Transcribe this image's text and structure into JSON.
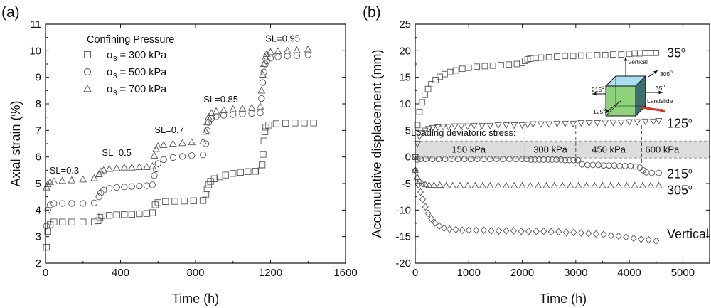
{
  "panels": [
    {
      "label": "(a)",
      "type": "scatter",
      "xlabel": "Time (h)",
      "ylabel": "Axial strain (%)",
      "xlim": [
        0,
        1600
      ],
      "ylim": [
        2,
        11
      ],
      "xticks": [
        "0",
        "400",
        "800",
        "1200",
        "1600"
      ],
      "yticks": [
        "2",
        "3",
        "4",
        "5",
        "6",
        "7",
        "8",
        "9",
        "10",
        "11"
      ],
      "legend": {
        "title": "Confining Pressure",
        "placement": "top-left",
        "entries": [
          {
            "symbol": "square",
            "label": " = 300 kPa"
          },
          {
            "symbol": "circle",
            "label": " = 500 kPa"
          },
          {
            "symbol": "triangle",
            "label": " = 700 kPa"
          }
        ],
        "symbol_prefix": "σ",
        "symbol_subscript": "3"
      },
      "annotations": [
        {
          "text": "SL=0.3",
          "x": 100,
          "y": 5.38
        },
        {
          "text": "SL=0.5",
          "x": 380,
          "y": 6.05
        },
        {
          "text": "SL=0.7",
          "x": 660,
          "y": 6.9
        },
        {
          "text": "SL=0.85",
          "x": 935,
          "y": 8.05
        },
        {
          "text": "SL=0.95",
          "x": 1265,
          "y": 10.35
        }
      ],
      "series": [
        {
          "name": "σ3 = 300 kPa",
          "marker": "square",
          "x": [
            5,
            12,
            25,
            45,
            90,
            140,
            200,
            260,
            280,
            290,
            300,
            340,
            380,
            420,
            460,
            500,
            540,
            570,
            585,
            600,
            640,
            690,
            740,
            790,
            840,
            855,
            862,
            870,
            880,
            900,
            930,
            960,
            1000,
            1040,
            1080,
            1120,
            1150,
            1155,
            1160,
            1165,
            1170,
            1175,
            1190,
            1230,
            1280,
            1330,
            1380,
            1430
          ],
          "y": [
            2.6,
            3.2,
            3.45,
            3.55,
            3.55,
            3.55,
            3.55,
            3.55,
            3.6,
            3.72,
            3.78,
            3.8,
            3.82,
            3.83,
            3.84,
            3.86,
            3.87,
            3.9,
            4.2,
            4.28,
            4.32,
            4.33,
            4.34,
            4.35,
            4.36,
            4.6,
            4.8,
            4.95,
            5.08,
            5.18,
            5.25,
            5.32,
            5.38,
            5.42,
            5.45,
            5.46,
            5.48,
            5.7,
            6.1,
            6.6,
            6.95,
            7.12,
            7.2,
            7.25,
            7.27,
            7.28,
            7.28,
            7.28
          ]
        },
        {
          "name": "σ3 = 500 kPa",
          "marker": "circle",
          "x": [
            5,
            12,
            25,
            45,
            90,
            140,
            200,
            260,
            285,
            295,
            310,
            340,
            380,
            420,
            460,
            500,
            540,
            570,
            580,
            590,
            600,
            630,
            680,
            730,
            780,
            840,
            855,
            862,
            870,
            885,
            910,
            950,
            1000,
            1050,
            1100,
            1145,
            1152,
            1158,
            1165,
            1172,
            1180,
            1200,
            1240,
            1290,
            1340,
            1400
          ],
          "y": [
            3.4,
            4.0,
            4.2,
            4.25,
            4.25,
            4.25,
            4.25,
            4.27,
            4.5,
            4.65,
            4.75,
            4.82,
            4.85,
            4.87,
            4.89,
            4.9,
            4.92,
            4.95,
            5.3,
            5.55,
            5.75,
            5.9,
            5.98,
            6.02,
            6.05,
            6.08,
            6.5,
            7.0,
            7.3,
            7.45,
            7.52,
            7.57,
            7.6,
            7.62,
            7.64,
            7.66,
            8.2,
            8.8,
            9.2,
            9.5,
            9.62,
            9.72,
            9.77,
            9.8,
            9.82,
            9.85
          ]
        },
        {
          "name": "σ3 = 700 kPa",
          "marker": "triangle",
          "x": [
            5,
            12,
            25,
            45,
            90,
            140,
            200,
            260,
            285,
            295,
            310,
            340,
            380,
            420,
            460,
            500,
            540,
            570,
            580,
            590,
            600,
            630,
            680,
            730,
            780,
            840,
            855,
            862,
            870,
            885,
            910,
            950,
            1000,
            1050,
            1100,
            1145,
            1152,
            1158,
            1165,
            1172,
            1180,
            1200,
            1240,
            1290,
            1340,
            1400
          ],
          "y": [
            4.85,
            4.97,
            5.05,
            5.08,
            5.1,
            5.12,
            5.15,
            5.2,
            5.35,
            5.45,
            5.5,
            5.55,
            5.58,
            5.6,
            5.6,
            5.62,
            5.62,
            5.65,
            6.05,
            6.3,
            6.4,
            6.45,
            6.5,
            6.52,
            6.55,
            6.58,
            6.95,
            7.3,
            7.5,
            7.65,
            7.72,
            7.76,
            7.8,
            7.82,
            7.85,
            7.9,
            8.5,
            9.1,
            9.5,
            9.75,
            9.88,
            9.95,
            9.98,
            10.0,
            10.02,
            10.05
          ]
        }
      ]
    },
    {
      "label": "(b)",
      "type": "scatter",
      "xlabel": "Time (h)",
      "ylabel": "Accumulative displacement (mm)",
      "xlim": [
        0,
        5500
      ],
      "ylim": [
        -20,
        25
      ],
      "xticks": [
        "0",
        "1000",
        "2000",
        "3000",
        "4000",
        "5000"
      ],
      "yticks": [
        "-20",
        "-15",
        "-10",
        "-5",
        "0",
        "5",
        "10",
        "15",
        "20",
        "25"
      ],
      "band": {
        "y_from": -0.2,
        "y_to": 3.0,
        "title": "Loading deviatoric  stress:",
        "stages": [
          {
            "label": "150 kPa",
            "x_from": 0,
            "x_to": 2050
          },
          {
            "label": "300 kPa",
            "x_from": 2050,
            "x_to": 3000
          },
          {
            "label": "450 kPa",
            "x_from": 3000,
            "x_to": 4230
          },
          {
            "label": "600 kPa",
            "x_from": 4230,
            "x_to": 5500
          }
        ]
      },
      "series_labels": [
        {
          "text": "35",
          "sup": "o",
          "y": 19.6
        },
        {
          "text": "125",
          "sup": "o",
          "y": 6.3
        },
        {
          "text": "215",
          "sup": "o",
          "y": -3.2
        },
        {
          "text": "305",
          "sup": "o",
          "y": -6.3
        },
        {
          "text": "Vertical",
          "sup": "",
          "y": -14.5
        }
      ],
      "inset": {
        "vertical": "Vertical",
        "landslide": "Landslide",
        "a35": "35",
        "a125": "125",
        "a215": "215",
        "a305": "305",
        "sup": "o"
      },
      "series": [
        {
          "name": "35°",
          "marker": "square",
          "x": [
            0,
            40,
            80,
            130,
            180,
            240,
            300,
            380,
            460,
            550,
            650,
            760,
            880,
            1000,
            1150,
            1300,
            1450,
            1600,
            1750,
            1900,
            2000,
            2050,
            2100,
            2150,
            2250,
            2350,
            2500,
            2650,
            2800,
            2950,
            3100,
            3250,
            3400,
            3550,
            3700,
            3850,
            4000,
            4100,
            4200,
            4300,
            4400,
            4500
          ],
          "y": [
            0,
            6.0,
            8.5,
            10.3,
            11.7,
            12.8,
            13.7,
            14.5,
            15.1,
            15.6,
            16.0,
            16.3,
            16.6,
            16.8,
            17.0,
            17.1,
            17.2,
            17.3,
            17.4,
            17.5,
            17.7,
            18.1,
            18.4,
            18.5,
            18.6,
            18.7,
            18.8,
            18.9,
            19.0,
            19.0,
            19.1,
            19.1,
            19.2,
            19.2,
            19.3,
            19.3,
            19.4,
            19.5,
            19.5,
            19.6,
            19.6,
            19.6
          ]
        },
        {
          "name": "125°",
          "marker": "triangle-down",
          "x": [
            0,
            40,
            80,
            130,
            180,
            250,
            330,
            420,
            520,
            620,
            740,
            860,
            980,
            1100,
            1250,
            1400,
            1550,
            1700,
            1850,
            2000,
            2100,
            2200,
            2350,
            2500,
            2650,
            2800,
            2950,
            3100,
            3250,
            3400,
            3550,
            3700,
            3850,
            4000,
            4150,
            4300,
            4450,
            4550
          ],
          "y": [
            0,
            2.5,
            3.8,
            4.5,
            5.0,
            5.3,
            5.5,
            5.6,
            5.7,
            5.7,
            5.8,
            5.8,
            5.8,
            5.9,
            5.9,
            5.9,
            6.0,
            6.0,
            6.0,
            6.0,
            6.1,
            6.2,
            6.2,
            6.2,
            6.3,
            6.3,
            6.3,
            6.4,
            6.4,
            6.4,
            6.5,
            6.5,
            6.5,
            6.6,
            6.6,
            6.7,
            6.7,
            6.8
          ]
        },
        {
          "name": "215°",
          "marker": "circle",
          "x": [
            0,
            40,
            100,
            200,
            320,
            440,
            560,
            680,
            800,
            920,
            1040,
            1160,
            1280,
            1400,
            1520,
            1640,
            1760,
            1880,
            2000,
            2080,
            2160,
            2240,
            2320,
            2400,
            2480,
            2560,
            2640,
            2720,
            2800,
            2880,
            2960,
            3040,
            3120,
            3220,
            3320,
            3420,
            3520,
            3620,
            3720,
            3820,
            3920,
            4020,
            4120,
            4200,
            4260,
            4320,
            4420,
            4550
          ],
          "y": [
            0,
            -0.5,
            -0.4,
            -0.4,
            -0.4,
            -0.4,
            -0.4,
            -0.4,
            -0.4,
            -0.4,
            -0.4,
            -0.4,
            -0.4,
            -0.4,
            -0.4,
            -0.4,
            -0.4,
            -0.4,
            -0.4,
            -0.4,
            -0.5,
            -0.5,
            -0.5,
            -0.5,
            -0.5,
            -0.5,
            -0.5,
            -0.5,
            -0.6,
            -0.6,
            -0.6,
            -0.6,
            -1.4,
            -1.5,
            -1.5,
            -1.5,
            -1.6,
            -1.6,
            -1.6,
            -1.7,
            -1.7,
            -1.7,
            -1.8,
            -2.0,
            -2.5,
            -2.9,
            -3.0,
            -3.0
          ]
        },
        {
          "name": "305°",
          "marker": "triangle",
          "x": [
            0,
            40,
            80,
            130,
            190,
            260,
            350,
            460,
            580,
            700,
            840,
            980,
            1120,
            1260,
            1400,
            1550,
            1700,
            1850,
            2000,
            2150,
            2300,
            2450,
            2600,
            2750,
            2900,
            3050,
            3200,
            3350,
            3500,
            3650,
            3800,
            3950,
            4100,
            4250,
            4400,
            4550
          ],
          "y": [
            -2.5,
            -3.8,
            -4.5,
            -5.0,
            -5.2,
            -5.3,
            -5.3,
            -5.3,
            -5.4,
            -5.4,
            -5.4,
            -5.4,
            -5.4,
            -5.4,
            -5.4,
            -5.4,
            -5.4,
            -5.4,
            -5.4,
            -5.4,
            -5.4,
            -5.4,
            -5.4,
            -5.4,
            -5.4,
            -5.4,
            -5.4,
            -5.4,
            -5.4,
            -5.4,
            -5.4,
            -5.4,
            -5.4,
            -5.4,
            -5.4,
            -5.4
          ]
        },
        {
          "name": "Vertical",
          "marker": "diamond",
          "x": [
            0,
            30,
            60,
            100,
            140,
            190,
            240,
            300,
            370,
            450,
            540,
            640,
            760,
            880,
            1000,
            1140,
            1280,
            1420,
            1560,
            1700,
            1840,
            1980,
            2120,
            2260,
            2400,
            2540,
            2680,
            2820,
            2960,
            3100,
            3240,
            3380,
            3520,
            3660,
            3800,
            3940,
            4080,
            4220,
            4360,
            4500
          ],
          "y": [
            -2.5,
            -4.0,
            -5.2,
            -6.6,
            -8.0,
            -9.4,
            -10.6,
            -11.6,
            -12.4,
            -13.0,
            -13.4,
            -13.6,
            -13.7,
            -13.8,
            -13.8,
            -13.8,
            -13.8,
            -13.9,
            -13.9,
            -13.9,
            -13.9,
            -14.0,
            -14.0,
            -14.0,
            -14.0,
            -14.1,
            -14.1,
            -14.2,
            -14.2,
            -14.3,
            -14.4,
            -14.5,
            -14.6,
            -14.8,
            -14.9,
            -15.1,
            -15.3,
            -15.5,
            -15.6,
            -15.8
          ]
        }
      ]
    }
  ]
}
